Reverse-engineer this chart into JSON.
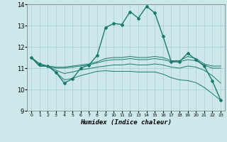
{
  "xlabel": "Humidex (Indice chaleur)",
  "background_color": "#cce8eb",
  "grid_color": "#aacdd2",
  "line_color": "#1a7a6e",
  "xlim": [
    -0.5,
    23.5
  ],
  "ylim": [
    9,
    14
  ],
  "yticks": [
    9,
    10,
    11,
    12,
    13,
    14
  ],
  "xticks": [
    0,
    1,
    2,
    3,
    4,
    5,
    6,
    7,
    8,
    9,
    10,
    11,
    12,
    13,
    14,
    15,
    16,
    17,
    18,
    19,
    20,
    21,
    22,
    23
  ],
  "series": [
    {
      "x": [
        0,
        1,
        2,
        3,
        4,
        5,
        6,
        7,
        8,
        9,
        10,
        11,
        12,
        13,
        14,
        15,
        16,
        17,
        18,
        19,
        20,
        21,
        22,
        23
      ],
      "y": [
        11.5,
        11.2,
        11.1,
        10.8,
        10.3,
        10.5,
        11.0,
        11.15,
        11.6,
        12.9,
        13.1,
        13.05,
        13.65,
        13.35,
        13.9,
        13.6,
        12.5,
        11.3,
        11.3,
        11.7,
        11.4,
        11.1,
        10.4,
        9.5
      ],
      "marker": "D",
      "markersize": 2.0,
      "linewidth": 1.0,
      "with_marker": true
    },
    {
      "x": [
        0,
        1,
        2,
        3,
        4,
        5,
        6,
        7,
        8,
        9,
        10,
        11,
        12,
        13,
        14,
        15,
        16,
        17,
        18,
        19,
        20,
        21,
        22,
        23
      ],
      "y": [
        11.5,
        11.1,
        11.1,
        11.05,
        11.05,
        11.1,
        11.15,
        11.2,
        11.3,
        11.45,
        11.5,
        11.5,
        11.55,
        11.5,
        11.5,
        11.55,
        11.5,
        11.35,
        11.35,
        11.55,
        11.45,
        11.2,
        11.1,
        11.1
      ],
      "marker": null,
      "markersize": 0,
      "linewidth": 0.7,
      "with_marker": false
    },
    {
      "x": [
        0,
        1,
        2,
        3,
        4,
        5,
        6,
        7,
        8,
        9,
        10,
        11,
        12,
        13,
        14,
        15,
        16,
        17,
        18,
        19,
        20,
        21,
        22,
        23
      ],
      "y": [
        11.5,
        11.1,
        11.1,
        11.0,
        11.0,
        11.05,
        11.1,
        11.15,
        11.25,
        11.35,
        11.4,
        11.4,
        11.45,
        11.4,
        11.4,
        11.45,
        11.4,
        11.3,
        11.3,
        11.4,
        11.35,
        11.15,
        11.0,
        11.0
      ],
      "marker": null,
      "markersize": 0,
      "linewidth": 0.7,
      "with_marker": false
    },
    {
      "x": [
        0,
        1,
        2,
        3,
        4,
        5,
        6,
        7,
        8,
        9,
        10,
        11,
        12,
        13,
        14,
        15,
        16,
        17,
        18,
        19,
        20,
        21,
        22,
        23
      ],
      "y": [
        11.5,
        11.1,
        11.1,
        10.9,
        10.75,
        10.82,
        10.92,
        10.98,
        11.05,
        11.1,
        11.15,
        11.15,
        11.2,
        11.15,
        11.15,
        11.2,
        11.15,
        11.05,
        11.0,
        11.1,
        11.05,
        10.9,
        10.65,
        10.3
      ],
      "marker": null,
      "markersize": 0,
      "linewidth": 0.7,
      "with_marker": false
    },
    {
      "x": [
        0,
        1,
        2,
        3,
        4,
        5,
        6,
        7,
        8,
        9,
        10,
        11,
        12,
        13,
        14,
        15,
        16,
        17,
        18,
        19,
        20,
        21,
        22,
        23
      ],
      "y": [
        11.5,
        11.1,
        11.1,
        10.8,
        10.45,
        10.52,
        10.65,
        10.75,
        10.85,
        10.88,
        10.85,
        10.85,
        10.85,
        10.82,
        10.82,
        10.82,
        10.72,
        10.55,
        10.45,
        10.42,
        10.32,
        10.1,
        9.8,
        9.5
      ],
      "marker": null,
      "markersize": 0,
      "linewidth": 0.7,
      "with_marker": false
    }
  ]
}
